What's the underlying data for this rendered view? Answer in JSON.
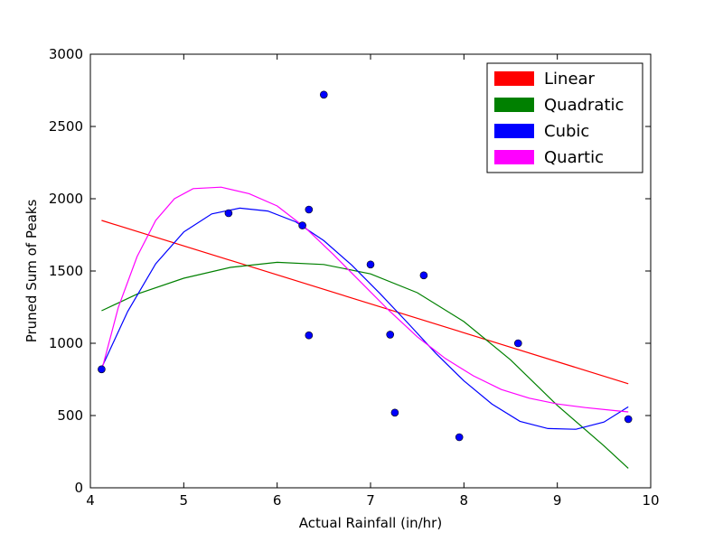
{
  "chart_data": {
    "type": "scatter",
    "title": "",
    "xlabel": "Actual Rainfall (in/hr)",
    "ylabel": "Pruned Sum of Peaks",
    "xlim": [
      4,
      10
    ],
    "ylim": [
      0,
      3000
    ],
    "x_ticks": [
      "4",
      "5",
      "6",
      "7",
      "8",
      "9",
      "10"
    ],
    "y_ticks": [
      "0",
      "500",
      "1000",
      "1500",
      "2000",
      "2500",
      "3000"
    ],
    "grid": false,
    "legend_position": "top-right",
    "points": {
      "color": "#0000ff",
      "data": [
        {
          "x": 4.12,
          "y": 820
        },
        {
          "x": 5.48,
          "y": 1900
        },
        {
          "x": 6.27,
          "y": 1815
        },
        {
          "x": 6.34,
          "y": 1925
        },
        {
          "x": 6.34,
          "y": 1055
        },
        {
          "x": 6.5,
          "y": 2720
        },
        {
          "x": 7.0,
          "y": 1545
        },
        {
          "x": 7.21,
          "y": 1060
        },
        {
          "x": 7.26,
          "y": 520
        },
        {
          "x": 7.57,
          "y": 1470
        },
        {
          "x": 7.95,
          "y": 350
        },
        {
          "x": 8.58,
          "y": 1000
        },
        {
          "x": 9.76,
          "y": 475
        }
      ]
    },
    "series": [
      {
        "name": "Linear",
        "color": "#ff0000",
        "curve": [
          [
            4.12,
            1850
          ],
          [
            9.76,
            720
          ]
        ]
      },
      {
        "name": "Quadratic",
        "color": "#008000",
        "curve": [
          [
            4.12,
            1225
          ],
          [
            4.5,
            1340
          ],
          [
            5.0,
            1450
          ],
          [
            5.5,
            1525
          ],
          [
            6.0,
            1560
          ],
          [
            6.5,
            1545
          ],
          [
            7.0,
            1480
          ],
          [
            7.5,
            1350
          ],
          [
            8.0,
            1150
          ],
          [
            8.5,
            885
          ],
          [
            9.0,
            570
          ],
          [
            9.5,
            290
          ],
          [
            9.76,
            135
          ]
        ]
      },
      {
        "name": "Cubic",
        "color": "#0000ff",
        "curve": [
          [
            4.12,
            830
          ],
          [
            4.4,
            1220
          ],
          [
            4.7,
            1550
          ],
          [
            5.0,
            1770
          ],
          [
            5.3,
            1895
          ],
          [
            5.6,
            1935
          ],
          [
            5.9,
            1915
          ],
          [
            6.2,
            1840
          ],
          [
            6.5,
            1710
          ],
          [
            6.8,
            1540
          ],
          [
            7.1,
            1345
          ],
          [
            7.4,
            1140
          ],
          [
            7.7,
            930
          ],
          [
            8.0,
            740
          ],
          [
            8.3,
            580
          ],
          [
            8.6,
            460
          ],
          [
            8.9,
            410
          ],
          [
            9.2,
            405
          ],
          [
            9.5,
            455
          ],
          [
            9.76,
            560
          ]
        ]
      },
      {
        "name": "Quartic",
        "color": "#ff00ff",
        "curve": [
          [
            4.12,
            810
          ],
          [
            4.3,
            1250
          ],
          [
            4.5,
            1600
          ],
          [
            4.7,
            1850
          ],
          [
            4.9,
            2000
          ],
          [
            5.1,
            2070
          ],
          [
            5.4,
            2080
          ],
          [
            5.7,
            2035
          ],
          [
            6.0,
            1950
          ],
          [
            6.3,
            1800
          ],
          [
            6.6,
            1615
          ],
          [
            6.9,
            1420
          ],
          [
            7.2,
            1225
          ],
          [
            7.5,
            1045
          ],
          [
            7.8,
            895
          ],
          [
            8.1,
            775
          ],
          [
            8.4,
            680
          ],
          [
            8.7,
            620
          ],
          [
            9.0,
            580
          ],
          [
            9.3,
            555
          ],
          [
            9.6,
            535
          ],
          [
            9.76,
            525
          ]
        ]
      }
    ]
  }
}
